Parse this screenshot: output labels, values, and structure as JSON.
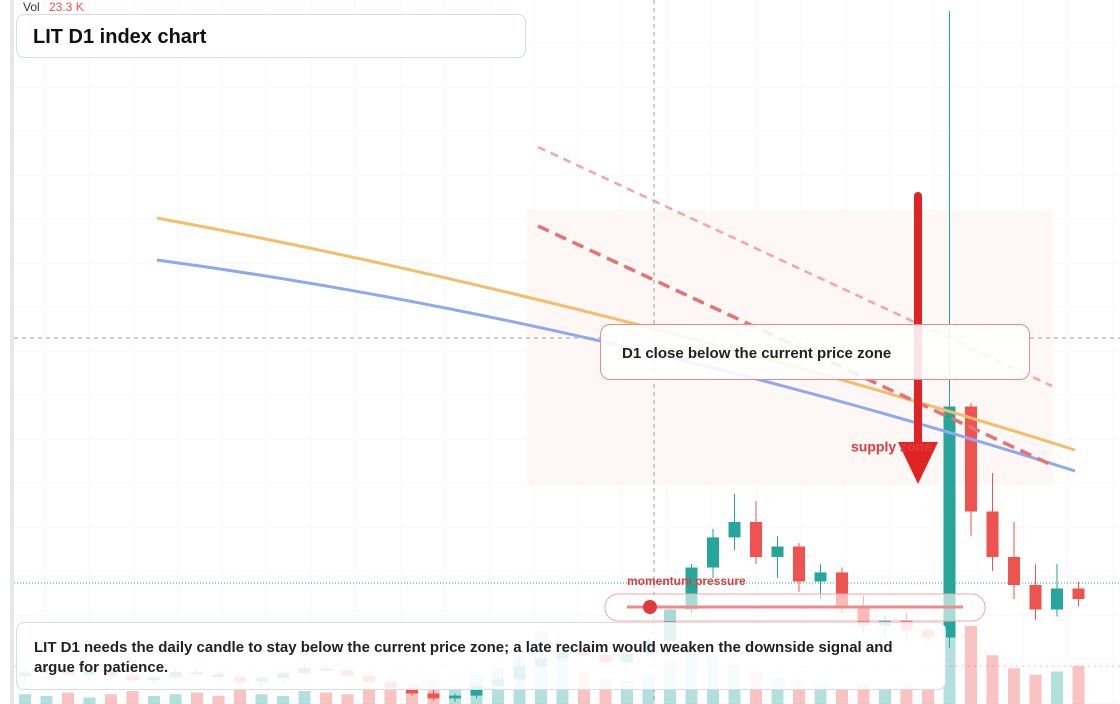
{
  "chart_data": {
    "type": "candlestick",
    "title": "LIT D1 index chart",
    "volume_title": "Vol",
    "last_volume": {
      "value": 23.3,
      "label": "23.3 K"
    },
    "ylim": [
      0,
      100
    ],
    "vlim": [
      0,
      80
    ],
    "up_color": "#26a69a",
    "down_color": "#ef5350",
    "open": [
      4,
      4.5,
      5,
      4.2,
      4.8,
      4.1,
      3.4,
      3.8,
      4.6,
      4.3,
      3.9,
      3.2,
      3.7,
      4.4,
      5.1,
      4.8,
      4.0,
      3.2,
      2.3,
      1.5,
      0.8,
      1.2,
      2.6,
      3.5,
      5.4,
      6.5,
      7.5,
      7,
      6,
      7.2,
      9,
      13.5,
      19.5,
      23.8,
      26,
      21,
      22.5,
      17.5,
      18.8,
      14,
      11.2,
      12,
      10.5,
      9.5,
      42.5,
      27.5,
      21,
      17,
      13.5,
      16.5
    ],
    "high": [
      5,
      5.5,
      5.5,
      5,
      5.2,
      4.6,
      4.2,
      5,
      5.4,
      4.8,
      4.5,
      4,
      4.6,
      5.5,
      5.8,
      5.2,
      4.4,
      3.6,
      2.8,
      2,
      1.5,
      3,
      4,
      6,
      7,
      8,
      8.6,
      8,
      7.5,
      9.5,
      14,
      20,
      25,
      30,
      29,
      24,
      23,
      20,
      19.5,
      15.5,
      12.5,
      13,
      11,
      99,
      43,
      33,
      26,
      20,
      20,
      17.5
    ],
    "low": [
      3,
      4,
      4,
      3.5,
      4,
      3,
      2.8,
      3.5,
      4,
      3.6,
      3,
      2.5,
      3.2,
      4,
      4.6,
      3.8,
      3,
      2,
      1.2,
      0.5,
      0.3,
      0.8,
      2.2,
      3.2,
      4.8,
      6,
      6.8,
      5.5,
      5.5,
      7,
      8.8,
      13,
      18,
      22,
      20,
      18,
      16,
      15,
      13,
      10,
      9.5,
      9,
      8.5,
      8,
      24,
      19,
      15,
      12,
      12.5,
      14
    ],
    "close": [
      4.5,
      5,
      4.2,
      4.8,
      4.1,
      3.4,
      3.8,
      4.6,
      4.3,
      3.9,
      3.2,
      3.7,
      4.4,
      5.1,
      4.8,
      4.0,
      3.2,
      2.3,
      1.5,
      0.8,
      1.2,
      2.6,
      3.5,
      5.4,
      6.5,
      7.5,
      7,
      6,
      7.2,
      9,
      13.5,
      19.5,
      23.8,
      26,
      21,
      22.5,
      17.5,
      18.8,
      14,
      11.2,
      12,
      10.5,
      9.5,
      42.5,
      27.5,
      21,
      17,
      13.5,
      16.5,
      15
    ],
    "volumes": [
      6,
      5,
      7,
      4,
      6,
      8,
      5,
      6,
      7,
      5,
      9,
      6,
      5,
      8,
      7,
      6,
      10,
      9,
      12,
      14,
      11,
      18,
      22,
      30,
      45,
      28,
      20,
      16,
      14,
      18,
      26,
      34,
      30,
      24,
      20,
      16,
      14,
      12,
      10,
      12,
      9,
      11,
      10,
      75,
      48,
      30,
      22,
      18,
      20,
      23.3
    ],
    "annotations": {
      "signal": "D1 close below the current price zone",
      "zone": "supply zone",
      "momentum": "momentum pressure",
      "note": "LIT D1 needs the daily candle to stay below the current price zone; a late reclaim would weaken the downside signal and argue for patience."
    }
  }
}
